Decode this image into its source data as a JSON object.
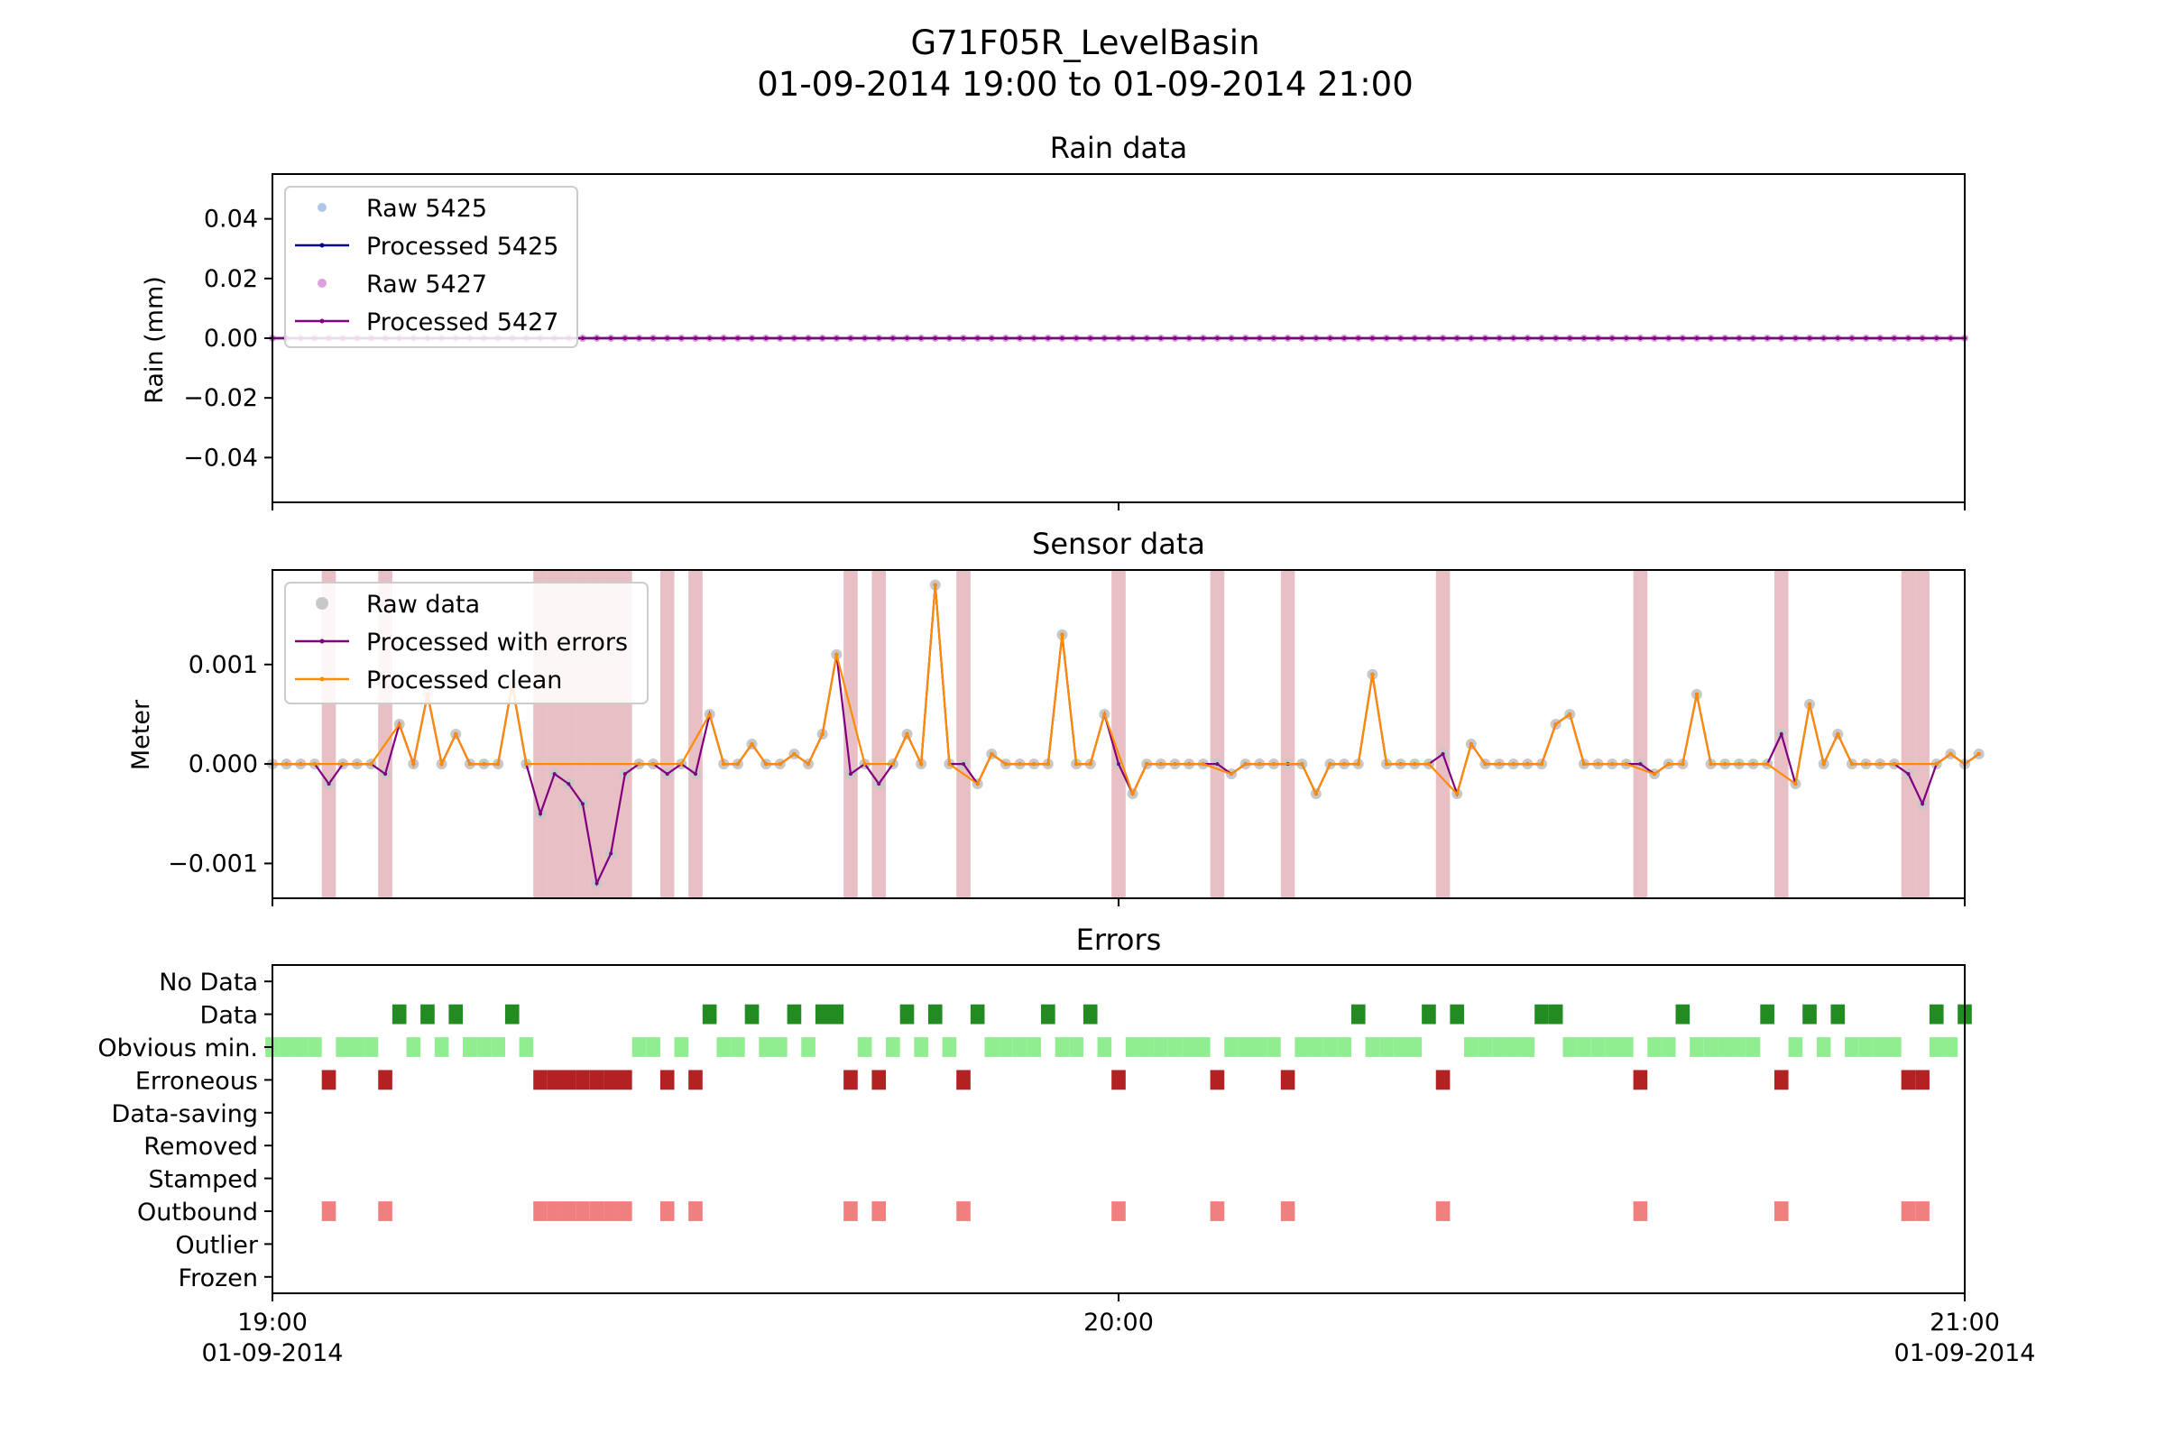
{
  "figure": {
    "title_line1": "G71F05R_LevelBasin",
    "title_line2": "01-09-2014 19:00 to 01-09-2014 21:00"
  },
  "time_axis": {
    "range_minutes": [
      0,
      120
    ],
    "ticks": [
      {
        "minute": 0,
        "line1": "19:00",
        "line2": "01-09-2014"
      },
      {
        "minute": 60,
        "line1": "20:00",
        "line2": ""
      },
      {
        "minute": 120,
        "line1": "21:00",
        "line2": "01-09-2014"
      }
    ]
  },
  "chart_data": [
    {
      "type": "line",
      "title": "Rain data",
      "ylabel": "Rain (mm)",
      "ylim": [
        -0.055,
        0.055
      ],
      "yticks": [
        0.04,
        0.02,
        0.0,
        -0.02,
        -0.04
      ],
      "ytick_labels": [
        "0.04",
        "0.02",
        "0.00",
        "−0.02",
        "−0.04"
      ],
      "legend_position": "upper-left",
      "x_step_minutes": 1,
      "series": [
        {
          "name": "Raw 5425",
          "style": "points",
          "color": "#aec7e8",
          "value": 0.0
        },
        {
          "name": "Processed 5425",
          "style": "line",
          "color": "#00008b",
          "value": 0.0
        },
        {
          "name": "Raw 5427",
          "style": "points",
          "color": "#dda0dd",
          "value": 0.0
        },
        {
          "name": "Processed 5427",
          "style": "line",
          "color": "#800080",
          "value": 0.0
        }
      ]
    },
    {
      "type": "line",
      "title": "Sensor data",
      "ylabel": "Meter",
      "ylim": [
        -0.00135,
        0.00195
      ],
      "yticks": [
        0.001,
        0.0,
        -0.001
      ],
      "ytick_labels": [
        "0.001",
        "0.000",
        "−0.001"
      ],
      "legend_position": "upper-left",
      "x_step_minutes": 1,
      "error_shading_color": "#d9959c",
      "series": [
        {
          "name": "Raw data",
          "style": "points",
          "color": "#c8c8c8"
        },
        {
          "name": "Processed with errors",
          "style": "line",
          "color": "#800080"
        },
        {
          "name": "Processed clean",
          "style": "line",
          "color": "#ff8c00"
        }
      ],
      "values": [
        0,
        0,
        0,
        0,
        -0.0002,
        0,
        0,
        0,
        -0.0001,
        0.0004,
        0,
        0.0007,
        0,
        0.0003,
        0,
        0,
        0,
        0.0008,
        0,
        -0.0005,
        -0.0001,
        -0.0002,
        -0.0004,
        -0.0012,
        -0.0009,
        -0.0001,
        0,
        0,
        -0.0001,
        0,
        -0.0001,
        0.0005,
        0,
        0,
        0.0002,
        0,
        0,
        0.0001,
        0,
        0.0003,
        0.0011,
        -0.0001,
        0,
        -0.0002,
        0,
        0.0003,
        0,
        0.0018,
        0,
        0,
        -0.0002,
        0.0001,
        0,
        0,
        0,
        0,
        0.0013,
        0,
        0,
        0.0005,
        0,
        -0.0003,
        0,
        0,
        0,
        0,
        0,
        0,
        -0.0001,
        0,
        0,
        0,
        0,
        0,
        -0.0003,
        0,
        0,
        0,
        0.0009,
        0,
        0,
        0,
        0,
        0.0001,
        -0.0003,
        0.0002,
        0,
        0,
        0,
        0,
        0,
        0.0004,
        0.0005,
        0,
        0,
        0,
        0,
        0,
        -0.0001,
        0,
        0,
        0.0007,
        0,
        0,
        0,
        0,
        0,
        0.0003,
        -0.0002,
        0.0006,
        0,
        0.0003,
        0,
        0,
        0,
        0,
        -0.0001,
        -0.0004,
        0,
        0.0001,
        0,
        0.0001
      ],
      "erroneous_minutes": [
        4,
        8,
        19,
        20,
        21,
        22,
        23,
        24,
        25,
        28,
        30,
        41,
        43,
        49,
        60,
        67,
        72,
        83,
        97,
        107,
        116,
        117
      ]
    },
    {
      "type": "heatmap",
      "title": "Errors",
      "categories": [
        "No Data",
        "Data",
        "Obvious min.",
        "Erroneous",
        "Data-saving",
        "Removed",
        "Stamped",
        "Outbound",
        "Outlier",
        "Frozen"
      ],
      "x_step_minutes": 1,
      "flags": {
        "No Data": {
          "color": "#ffffff",
          "minutes": []
        },
        "Data": {
          "color": "#228b22",
          "minutes": [
            9,
            11,
            13,
            17,
            31,
            34,
            37,
            39,
            40,
            45,
            47,
            50,
            55,
            58,
            77,
            82,
            84,
            90,
            91,
            100,
            106,
            109,
            111,
            118,
            120
          ]
        },
        "Obvious min.": {
          "color": "#90ee90",
          "minutes": [
            0,
            1,
            2,
            3,
            5,
            6,
            7,
            10,
            12,
            14,
            15,
            16,
            18,
            26,
            27,
            29,
            32,
            33,
            35,
            36,
            38,
            42,
            44,
            46,
            48,
            51,
            52,
            53,
            54,
            56,
            57,
            59,
            61,
            62,
            63,
            64,
            65,
            66,
            68,
            69,
            70,
            71,
            73,
            74,
            75,
            76,
            78,
            79,
            80,
            81,
            85,
            86,
            87,
            88,
            89,
            92,
            93,
            94,
            95,
            96,
            98,
            99,
            101,
            102,
            103,
            104,
            105,
            108,
            110,
            112,
            113,
            114,
            115,
            118,
            119
          ]
        },
        "Erroneous": {
          "color": "#b22222",
          "minutes": [
            4,
            8,
            19,
            20,
            21,
            22,
            23,
            24,
            25,
            28,
            30,
            41,
            43,
            49,
            60,
            67,
            72,
            83,
            97,
            107,
            116,
            117
          ]
        },
        "Data-saving": {
          "color": "#ffffff",
          "minutes": []
        },
        "Removed": {
          "color": "#ffffff",
          "minutes": []
        },
        "Stamped": {
          "color": "#ffffff",
          "minutes": []
        },
        "Outbound": {
          "color": "#f08080",
          "minutes": [
            4,
            8,
            19,
            20,
            21,
            22,
            23,
            24,
            25,
            28,
            30,
            41,
            43,
            49,
            60,
            67,
            72,
            83,
            97,
            107,
            116,
            117
          ]
        },
        "Outlier": {
          "color": "#ffffff",
          "minutes": []
        },
        "Frozen": {
          "color": "#ffffff",
          "minutes": []
        }
      }
    }
  ]
}
